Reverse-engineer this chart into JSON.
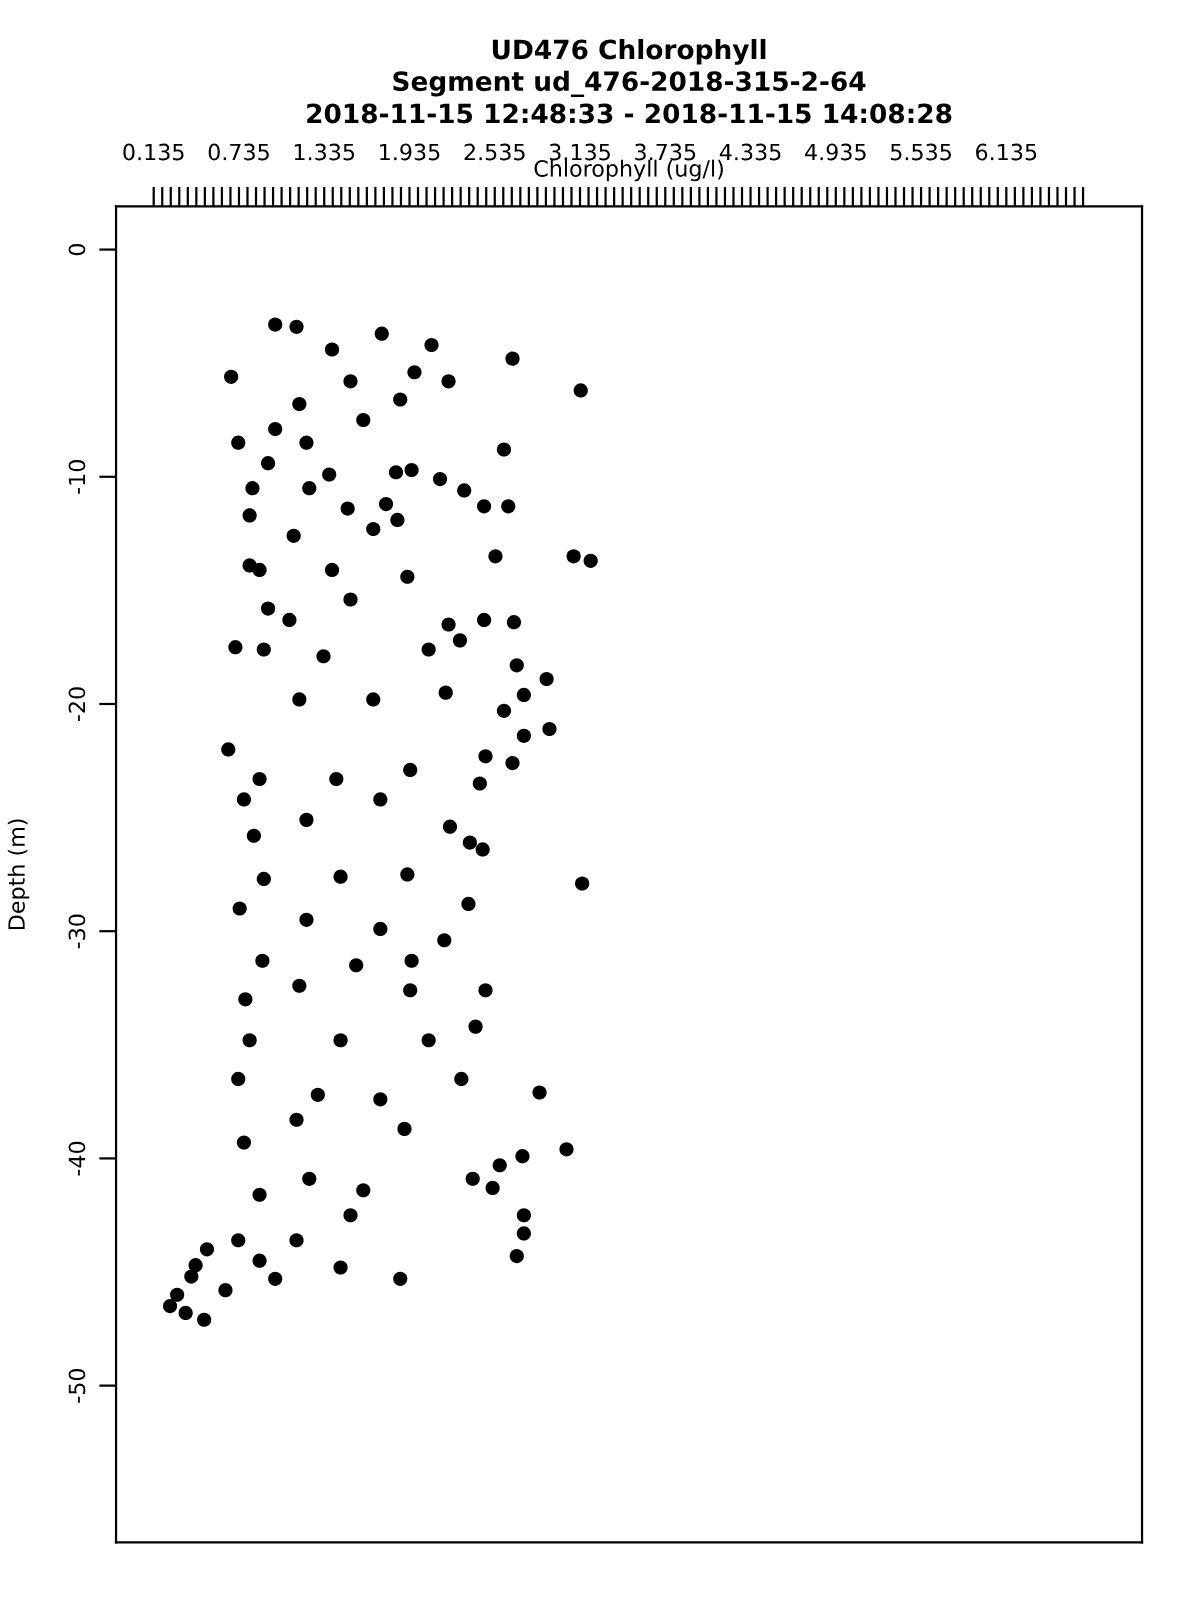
{
  "chart_data": {
    "type": "scatter",
    "title": "UD476 Chlorophyll\nSegment ud_476-2018-315-2-64\n2018-11-15 12:48:33 - 2018-11-15 14:08:28",
    "xlabel": "Chlorophyll (ug/l)",
    "ylabel": "Depth (m)",
    "marker": "circle",
    "grid": false,
    "xlim": [
      -0.13,
      7.09
    ],
    "ylim": [
      -56.9,
      1.9
    ],
    "yticks": [
      0,
      -10,
      -20,
      -30,
      -40,
      -50
    ],
    "xticks": [
      0.135,
      {
        "value": 0.195,
        "label": null
      },
      {
        "value": 0.255,
        "label": null
      },
      {
        "value": 0.315,
        "label": null
      },
      {
        "value": 0.375,
        "label": null
      },
      {
        "value": 0.435,
        "label": null
      },
      {
        "value": 0.495,
        "label": null
      },
      {
        "value": 0.555,
        "label": null
      },
      {
        "value": 0.615,
        "label": null
      },
      {
        "value": 0.675,
        "label": null
      },
      0.735,
      {
        "value": 0.795,
        "label": null
      },
      {
        "value": 0.855,
        "label": null
      },
      {
        "value": 0.915,
        "label": null
      },
      {
        "value": 0.975,
        "label": null
      },
      {
        "value": 1.035,
        "label": null
      },
      {
        "value": 1.095,
        "label": null
      },
      {
        "value": 1.155,
        "label": null
      },
      {
        "value": 1.215,
        "label": null
      },
      {
        "value": 1.275,
        "label": null
      },
      1.335,
      {
        "value": 1.395,
        "label": null
      },
      {
        "value": 1.455,
        "label": null
      },
      {
        "value": 1.515,
        "label": null
      },
      {
        "value": 1.575,
        "label": null
      },
      {
        "value": 1.635,
        "label": null
      },
      {
        "value": 1.695,
        "label": null
      },
      {
        "value": 1.755,
        "label": null
      },
      {
        "value": 1.815,
        "label": null
      },
      {
        "value": 1.875,
        "label": null
      },
      1.935,
      {
        "value": 1.995,
        "label": null
      },
      {
        "value": 2.055,
        "label": null
      },
      {
        "value": 2.115,
        "label": null
      },
      {
        "value": 2.175,
        "label": null
      },
      {
        "value": 2.235,
        "label": null
      },
      {
        "value": 2.295,
        "label": null
      },
      {
        "value": 2.355,
        "label": null
      },
      {
        "value": 2.415,
        "label": null
      },
      {
        "value": 2.475,
        "label": null
      },
      2.535,
      {
        "value": 2.595,
        "label": null
      },
      {
        "value": 2.655,
        "label": null
      },
      {
        "value": 2.715,
        "label": null
      },
      {
        "value": 2.775,
        "label": null
      },
      {
        "value": 2.835,
        "label": null
      },
      {
        "value": 2.895,
        "label": null
      },
      {
        "value": 2.955,
        "label": null
      },
      {
        "value": 3.015,
        "label": null
      },
      {
        "value": 3.075,
        "label": null
      },
      3.135,
      {
        "value": 3.195,
        "label": null
      },
      {
        "value": 3.255,
        "label": null
      },
      {
        "value": 3.315,
        "label": null
      },
      {
        "value": 3.375,
        "label": null
      },
      {
        "value": 3.435,
        "label": null
      },
      {
        "value": 3.495,
        "label": null
      },
      {
        "value": 3.555,
        "label": null
      },
      {
        "value": 3.615,
        "label": null
      },
      {
        "value": 3.675,
        "label": null
      },
      3.735,
      {
        "value": 3.795,
        "label": null
      },
      {
        "value": 3.855,
        "label": null
      },
      {
        "value": 3.915,
        "label": null
      },
      {
        "value": 3.975,
        "label": null
      },
      {
        "value": 4.035,
        "label": null
      },
      {
        "value": 4.095,
        "label": null
      },
      {
        "value": 4.155,
        "label": null
      },
      {
        "value": 4.215,
        "label": null
      },
      {
        "value": 4.275,
        "label": null
      },
      4.335,
      {
        "value": 4.395,
        "label": null
      },
      {
        "value": 4.455,
        "label": null
      },
      {
        "value": 4.515,
        "label": null
      },
      {
        "value": 4.575,
        "label": null
      },
      {
        "value": 4.635,
        "label": null
      },
      {
        "value": 4.695,
        "label": null
      },
      {
        "value": 4.755,
        "label": null
      },
      {
        "value": 4.815,
        "label": null
      },
      {
        "value": 4.875,
        "label": null
      },
      4.935,
      {
        "value": 4.995,
        "label": null
      },
      {
        "value": 5.055,
        "label": null
      },
      {
        "value": 5.115,
        "label": null
      },
      {
        "value": 5.175,
        "label": null
      },
      {
        "value": 5.235,
        "label": null
      },
      {
        "value": 5.295,
        "label": null
      },
      {
        "value": 5.355,
        "label": null
      },
      {
        "value": 5.415,
        "label": null
      },
      {
        "value": 5.475,
        "label": null
      },
      5.535,
      {
        "value": 5.595,
        "label": null
      },
      {
        "value": 5.655,
        "label": null
      },
      {
        "value": 5.715,
        "label": null
      },
      {
        "value": 5.775,
        "label": null
      },
      {
        "value": 5.835,
        "label": null
      },
      {
        "value": 5.895,
        "label": null
      },
      {
        "value": 5.955,
        "label": null
      },
      {
        "value": 6.015,
        "label": null
      },
      {
        "value": 6.075,
        "label": null
      },
      6.135,
      {
        "value": 6.195,
        "label": null
      },
      {
        "value": 6.255,
        "label": null
      },
      {
        "value": 6.315,
        "label": null
      },
      {
        "value": 6.375,
        "label": null
      },
      {
        "value": 6.435,
        "label": null
      },
      {
        "value": 6.495,
        "label": null
      },
      {
        "value": 6.555,
        "label": null
      },
      {
        "value": 6.615,
        "label": null
      },
      {
        "value": 6.675,
        "label": null
      }
    ],
    "series": [
      {
        "color": "#000000",
        "x": [
          0.99,
          1.14,
          1.39,
          1.74,
          2.09,
          2.66,
          3.14,
          0.68,
          1.52,
          1.97,
          2.21,
          1.16,
          1.87,
          0.99,
          1.61,
          0.73,
          1.21,
          2.6,
          1.95,
          0.94,
          1.37,
          1.84,
          0.83,
          1.23,
          2.32,
          2.15,
          2.46,
          2.63,
          1.77,
          0.81,
          1.5,
          1.12,
          1.68,
          1.85,
          3.09,
          3.21,
          2.54,
          0.81,
          0.88,
          1.39,
          1.92,
          0.94,
          1.09,
          1.52,
          2.21,
          2.46,
          2.67,
          2.29,
          0.71,
          0.91,
          1.33,
          2.07,
          2.69,
          2.9,
          0.66,
          1.16,
          1.68,
          2.19,
          2.74,
          2.6,
          2.92,
          2.74,
          2.47,
          2.66,
          0.88,
          1.42,
          1.94,
          2.43,
          0.77,
          1.73,
          1.21,
          0.84,
          2.22,
          2.36,
          2.45,
          3.15,
          0.91,
          1.45,
          1.92,
          0.74,
          2.35,
          1.21,
          1.73,
          2.18,
          0.9,
          1.56,
          1.95,
          2.47,
          0.78,
          1.16,
          1.94,
          2.4,
          0.81,
          1.45,
          2.07,
          2.3,
          2.85,
          0.73,
          1.29,
          1.73,
          1.14,
          1.9,
          0.77,
          3.04,
          2.73,
          2.57,
          2.38,
          1.23,
          1.61,
          2.52,
          0.88,
          2.74,
          2.74,
          2.69,
          1.52,
          0.73,
          0.51,
          1.14,
          0.43,
          0.4,
          0.3,
          0.25,
          0.36,
          0.49,
          0.64,
          0.99,
          1.87,
          1.45,
          0.88
        ],
        "values": [
          -3.3,
          -3.4,
          -4.4,
          -3.7,
          -4.2,
          -4.8,
          -6.2,
          -5.6,
          -5.8,
          -5.4,
          -5.8,
          -6.8,
          -6.6,
          -7.9,
          -7.5,
          -8.5,
          -8.5,
          -8.8,
          -9.7,
          -9.4,
          -9.9,
          -9.8,
          -10.5,
          -10.5,
          -10.6,
          -10.1,
          -11.3,
          -11.3,
          -11.2,
          -11.7,
          -11.4,
          -12.6,
          -12.3,
          -11.9,
          -13.5,
          -13.7,
          -13.5,
          -13.9,
          -14.1,
          -14.1,
          -14.4,
          -15.8,
          -16.3,
          -15.4,
          -16.5,
          -16.3,
          -16.4,
          -17.2,
          -17.5,
          -17.6,
          -17.9,
          -17.6,
          -18.3,
          -18.9,
          -22.0,
          -19.8,
          -19.8,
          -19.5,
          -19.6,
          -20.3,
          -21.1,
          -21.4,
          -22.3,
          -22.6,
          -23.3,
          -23.3,
          -22.9,
          -23.5,
          -24.2,
          -24.2,
          -25.1,
          -25.8,
          -25.4,
          -26.1,
          -26.4,
          -27.9,
          -27.7,
          -27.6,
          -27.5,
          -29.0,
          -28.8,
          -29.5,
          -29.9,
          -30.4,
          -31.3,
          -31.5,
          -31.3,
          -32.6,
          -33.0,
          -32.4,
          -32.6,
          -34.2,
          -34.8,
          -34.8,
          -34.8,
          -36.5,
          -37.1,
          -36.5,
          -37.2,
          -37.4,
          -38.3,
          -38.7,
          -39.3,
          -39.6,
          -39.9,
          -40.3,
          -40.9,
          -40.9,
          -41.4,
          -41.3,
          -41.6,
          -42.5,
          -43.3,
          -44.3,
          -42.5,
          -43.6,
          -44.0,
          -43.6,
          -44.7,
          -45.2,
          -46.0,
          -46.5,
          -46.8,
          -47.1,
          -45.8,
          -45.3,
          -45.3,
          -44.8,
          -44.5
        ]
      }
    ]
  }
}
